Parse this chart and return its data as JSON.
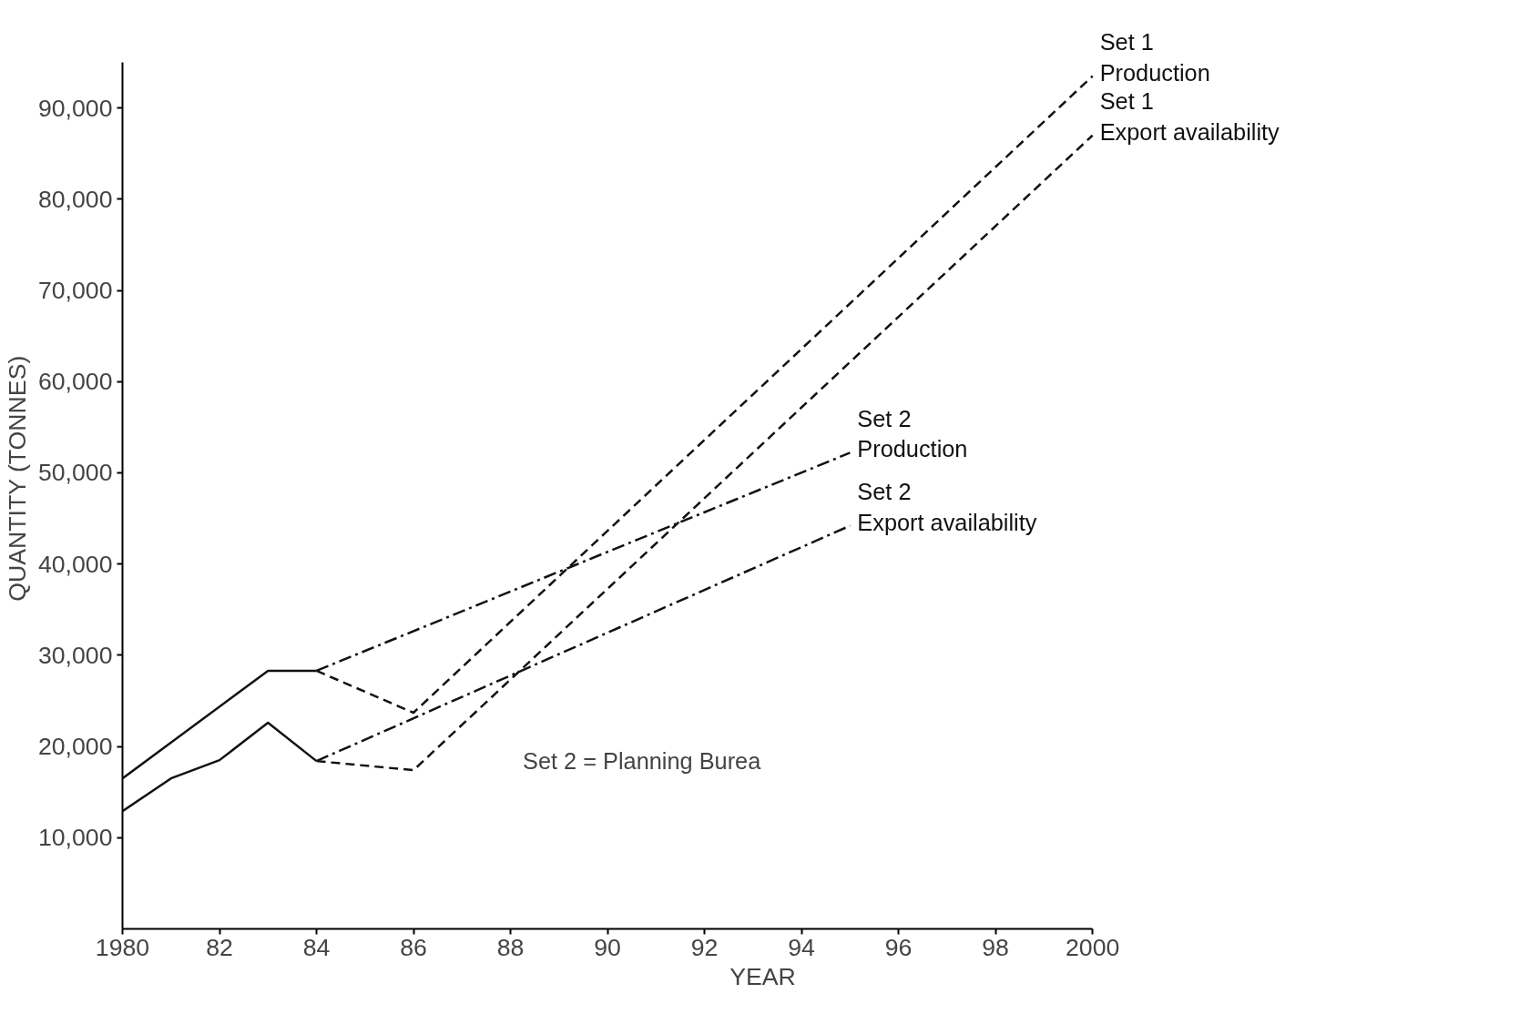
{
  "chart_data": {
    "type": "line",
    "xlabel": "YEAR",
    "ylabel": "QUANTITY (TONNES)",
    "xlim": [
      1980,
      2000
    ],
    "ylim": [
      0,
      95000
    ],
    "xticks": [
      1980,
      {
        "value": 1982,
        "label": "82"
      },
      {
        "value": 1984,
        "label": "84"
      },
      {
        "value": 1986,
        "label": "86"
      },
      {
        "value": 1988,
        "label": "88"
      },
      {
        "value": 1990,
        "label": "90"
      },
      {
        "value": 1992,
        "label": "92"
      },
      {
        "value": 1994,
        "label": "94"
      },
      {
        "value": 1996,
        "label": "96"
      },
      {
        "value": 1998,
        "label": "98"
      },
      2000
    ],
    "yticks": [
      {
        "value": 10000,
        "label": "10,000"
      },
      {
        "value": 20000,
        "label": "20,000"
      },
      {
        "value": 30000,
        "label": "30,000"
      },
      {
        "value": 40000,
        "label": "40,000"
      },
      {
        "value": 50000,
        "label": "50,000"
      },
      {
        "value": 60000,
        "label": "60,000"
      },
      {
        "value": 70000,
        "label": "70,000"
      },
      {
        "value": 80000,
        "label": "80,000"
      },
      {
        "value": 90000,
        "label": "90,000"
      }
    ],
    "grid": false,
    "marker": "none",
    "series": [
      {
        "color": "#111111",
        "line_style": "solid",
        "x": [
          1980,
          1983,
          1984
        ],
        "values": [
          16500,
          28300,
          28300
        ]
      },
      {
        "color": "#111111",
        "line_style": "solid",
        "x": [
          1980,
          1981,
          1982,
          1983,
          1984
        ],
        "values": [
          12900,
          16500,
          18500,
          22600,
          18400
        ]
      },
      {
        "name": "Set 1\nProduction",
        "color": "#111111",
        "line_style": "dashed",
        "x": [
          1984,
          1986,
          2000
        ],
        "values": [
          28300,
          23700,
          93500
        ]
      },
      {
        "name": "Set 1\nExport availability",
        "color": "#111111",
        "line_style": "dashed",
        "x": [
          1984,
          1986,
          2000
        ],
        "values": [
          18400,
          17400,
          87000
        ]
      },
      {
        "name": "Set 2\nProduction",
        "color": "#111111",
        "line_style": "dashdot",
        "x": [
          1984,
          1995
        ],
        "values": [
          28300,
          52200
        ]
      },
      {
        "name": "Set 2\nExport availability",
        "color": "#111111",
        "line_style": "dashdot",
        "x": [
          1984,
          1995
        ],
        "values": [
          18400,
          44200
        ]
      }
    ],
    "annotations": [
      "Set 2 = Planning Burea"
    ]
  }
}
